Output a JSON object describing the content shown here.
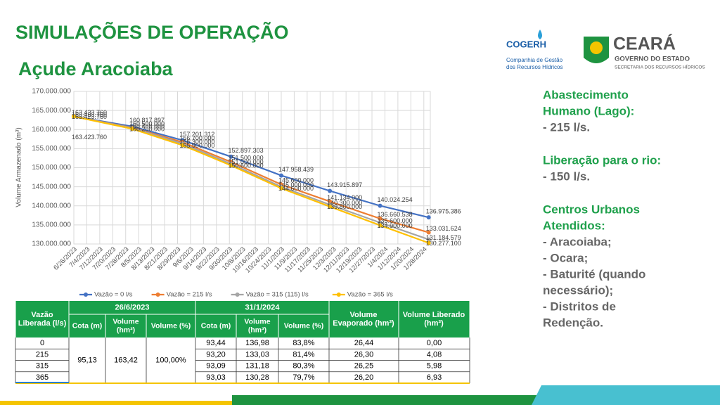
{
  "header": {
    "title": "SIMULAÇÕES DE OPERAÇÃO",
    "subtitle": "Açude Aracoiaba"
  },
  "logos": {
    "cogerh": "COGERH",
    "cogerh_sub": [
      "Companhia de Gestão",
      "dos Recursos Hídricos"
    ],
    "ceara": "CEARÁ",
    "ceara_sub": "GOVERNO DO ESTADO",
    "ceara_sec": "SECRETARIA DOS RECURSOS HÍDRICOS"
  },
  "chart_data": {
    "type": "line",
    "ylabel": "Volume Armazenado (m³)",
    "grid": true,
    "legend": "bottom",
    "x": [
      0,
      36,
      67,
      97,
      128,
      158,
      189,
      219
    ],
    "xlim": [
      0,
      220
    ],
    "xticks": [
      {
        "value": 0,
        "label": "6/26/2023"
      },
      {
        "value": 8,
        "label": "7/4/2023"
      },
      {
        "value": 16,
        "label": "7/12/2023"
      },
      {
        "value": 24,
        "label": "7/20/2023"
      },
      {
        "value": 32,
        "label": "7/28/2023"
      },
      {
        "value": 40,
        "label": "8/5/2023"
      },
      {
        "value": 48,
        "label": "8/13/2023"
      },
      {
        "value": 56,
        "label": "8/21/2023"
      },
      {
        "value": 64,
        "label": "8/29/2023"
      },
      {
        "value": 72,
        "label": "9/6/2023"
      },
      {
        "value": 80,
        "label": "9/14/2023"
      },
      {
        "value": 88,
        "label": "9/22/2023"
      },
      {
        "value": 96,
        "label": "9/30/2023"
      },
      {
        "value": 104,
        "label": "10/8/2023"
      },
      {
        "value": 112,
        "label": "10/16/2023"
      },
      {
        "value": 120,
        "label": "10/24/2023"
      },
      {
        "value": 128,
        "label": "11/1/2023"
      },
      {
        "value": 136,
        "label": "11/9/2023"
      },
      {
        "value": 144,
        "label": "11/17/2023"
      },
      {
        "value": 152,
        "label": "11/25/2023"
      },
      {
        "value": 160,
        "label": "12/3/2023"
      },
      {
        "value": 168,
        "label": "12/11/2023"
      },
      {
        "value": 176,
        "label": "12/19/2023"
      },
      {
        "value": 184,
        "label": "12/27/2023"
      },
      {
        "value": 192,
        "label": "1/4/2024"
      },
      {
        "value": 200,
        "label": "1/12/2024"
      },
      {
        "value": 208,
        "label": "1/20/2024"
      },
      {
        "value": 216,
        "label": "1/28/2024"
      }
    ],
    "ylim": [
      130000000,
      170000000
    ],
    "yticks": [
      {
        "value": 130000000,
        "label": "130.000.000"
      },
      {
        "value": 135000000,
        "label": "135.000.000"
      },
      {
        "value": 140000000,
        "label": "140.000.000"
      },
      {
        "value": 145000000,
        "label": "145.000.000"
      },
      {
        "value": 150000000,
        "label": "150.000.000"
      },
      {
        "value": 155000000,
        "label": "155.000.000"
      },
      {
        "value": 160000000,
        "label": "160.000.000"
      },
      {
        "value": 165000000,
        "label": "165.000.000"
      },
      {
        "value": 170000000,
        "label": "170.000.000"
      }
    ],
    "series": [
      {
        "name": "Vazão = 0 l/s",
        "color": "#4472c4",
        "values": [
          163423760,
          160817897,
          157201312,
          152897303,
          147958439,
          143915897,
          140024254,
          136975386
        ],
        "value_labels": [
          "163.423.760",
          "160.817.897",
          "157.201.312",
          "152.897.303",
          "147.958.439",
          "143.915.897",
          "140.024.254",
          "136.975.386"
        ]
      },
      {
        "name": "Vazão = 215 l/s",
        "color": "#ed7d31",
        "values": [
          163423760,
          160500000,
          156700000,
          151500000,
          145600000,
          141134000,
          136660538,
          133031624
        ],
        "value_labels": [
          "163.423.760",
          "160.500.000",
          "156.700.000",
          "151.500.000",
          "145.600.000",
          "141.134.000",
          "136.660.538",
          "133.031.624"
        ]
      },
      {
        "name": "Vazão = 315 (115) l/s",
        "color": "#a5a5a5",
        "values": [
          163423760,
          160400000,
          156300000,
          151000000,
          145000000,
          140300000,
          135600000,
          131184579
        ],
        "value_labels": [
          "163.423.760",
          "160.400.000",
          "156.300.000",
          "151.000.000",
          "145.000.000",
          "140.300.000",
          "135.600.000",
          "131.184.579"
        ]
      },
      {
        "name": "Vazão = 365 l/s",
        "color": "#ffc000",
        "values": [
          163423760,
          160200000,
          155900000,
          150600000,
          144600000,
          139800000,
          134900000,
          130277100
        ],
        "value_labels": [
          "163.423.760",
          "160.200.000",
          "155.900.000",
          "150.600.000",
          "144.600.000",
          "139.800.000",
          "134.900.000",
          "130.277.100"
        ]
      }
    ]
  },
  "table": {
    "groups": [
      "26/6/2023",
      "31/1/2024"
    ],
    "headers": {
      "flow": [
        "Vazão",
        "Liberada (l/s)"
      ],
      "evap": [
        "Volume",
        "Evaporado (hm³)"
      ],
      "released": [
        "Volume Liberado",
        "(hm³)"
      ]
    },
    "subheaders": [
      [
        "Cota (m)"
      ],
      [
        "Volume",
        "(hm³)"
      ],
      [
        "Volume (%)"
      ]
    ],
    "initial": [
      "95,13",
      "163,42",
      "100,00%"
    ],
    "rows": [
      [
        "0",
        "93,44",
        "136,98",
        "83,8%",
        "26,44",
        "0,00"
      ],
      [
        "215",
        "93,20",
        "133,03",
        "81,4%",
        "26,30",
        "4,08"
      ],
      [
        "315",
        "93,09",
        "131,18",
        "80,3%",
        "26,25",
        "5,98"
      ],
      [
        "365",
        "93,03",
        "130,28",
        "79,7%",
        "26,20",
        "6,93"
      ]
    ]
  },
  "info": [
    {
      "heading": [
        "Abastecimento",
        "Humano (Lago):"
      ],
      "items": [
        "- 215 l/s."
      ]
    },
    {
      "heading": [
        "Liberação para o rio:"
      ],
      "items": [
        "- 150 l/s."
      ]
    },
    {
      "heading": [
        "Centros Urbanos",
        "Atendidos:"
      ],
      "items": [
        "- Aracoiaba;",
        "- Ocara;",
        "- Baturité (quando",
        "necessário);",
        "- Distritos de",
        "Redenção."
      ]
    }
  ]
}
